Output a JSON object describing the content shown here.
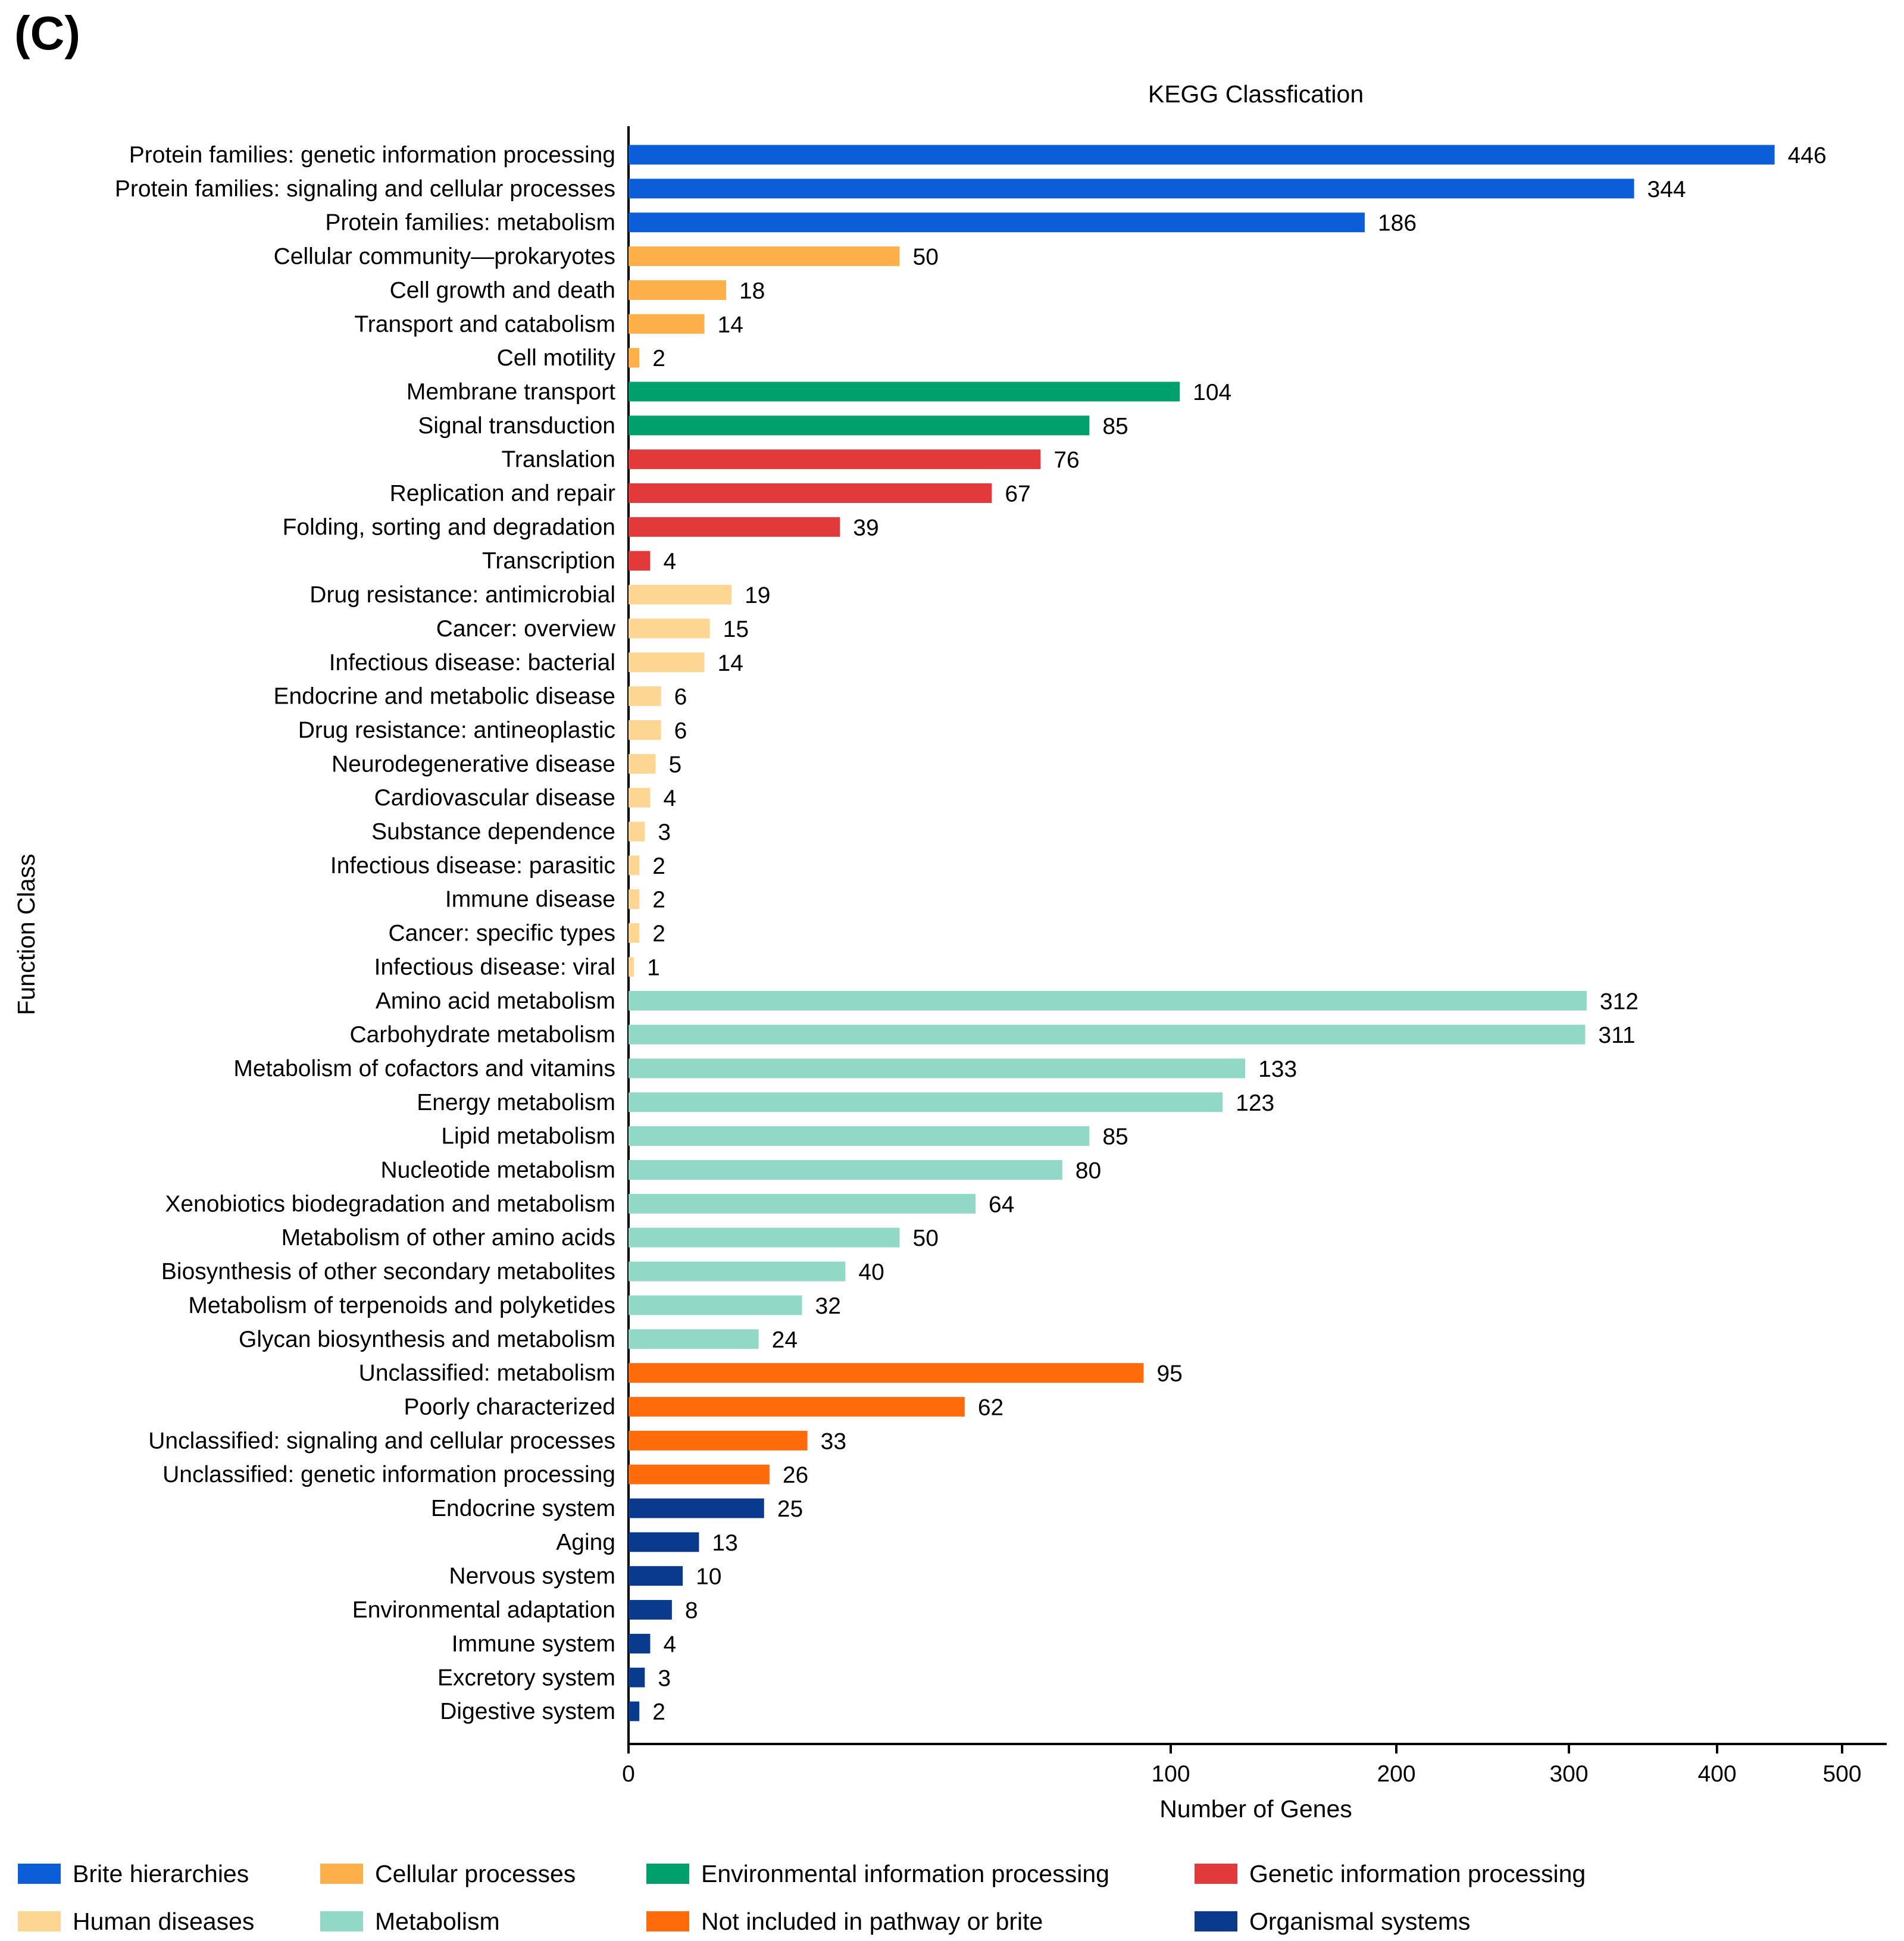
{
  "panel_label": "(C)",
  "chart_data": {
    "type": "bar",
    "orientation": "horizontal",
    "title": "KEGG Classfication",
    "xlabel": "Number of Genes",
    "ylabel": "Function Class",
    "xlim": [
      0,
      500
    ],
    "xticks": [
      0,
      100,
      200,
      300,
      400,
      500
    ],
    "x_scale": "broken",
    "legend_position": "bottom",
    "groups": [
      {
        "name": "Brite hierarchies",
        "color": "#0b5ed7"
      },
      {
        "name": "Cellular processes",
        "color": "#fdb04a"
      },
      {
        "name": "Environmental information processing",
        "color": "#00a06c"
      },
      {
        "name": "Genetic information processing",
        "color": "#e23a3a"
      },
      {
        "name": "Human diseases",
        "color": "#fed693"
      },
      {
        "name": "Metabolism",
        "color": "#92d8c6"
      },
      {
        "name": "Not included in pathway or brite",
        "color": "#ff6a0a"
      },
      {
        "name": "Organismal systems",
        "color": "#0a3a8c"
      }
    ],
    "bars": [
      {
        "label": "Protein families: genetic information processing",
        "value": 446,
        "group": 0
      },
      {
        "label": "Protein families: signaling and cellular processes",
        "value": 344,
        "group": 0
      },
      {
        "label": "Protein families: metabolism",
        "value": 186,
        "group": 0
      },
      {
        "label": "Cellular community—prokaryotes",
        "value": 50,
        "group": 1
      },
      {
        "label": "Cell growth and death",
        "value": 18,
        "group": 1
      },
      {
        "label": "Transport and catabolism",
        "value": 14,
        "group": 1
      },
      {
        "label": "Cell motility",
        "value": 2,
        "group": 1
      },
      {
        "label": "Membrane transport",
        "value": 104,
        "group": 2
      },
      {
        "label": "Signal transduction",
        "value": 85,
        "group": 2
      },
      {
        "label": "Translation",
        "value": 76,
        "group": 3
      },
      {
        "label": "Replication and repair",
        "value": 67,
        "group": 3
      },
      {
        "label": "Folding, sorting and degradation",
        "value": 39,
        "group": 3
      },
      {
        "label": "Transcription",
        "value": 4,
        "group": 3
      },
      {
        "label": "Drug resistance: antimicrobial",
        "value": 19,
        "group": 4
      },
      {
        "label": "Cancer: overview",
        "value": 15,
        "group": 4
      },
      {
        "label": "Infectious disease: bacterial",
        "value": 14,
        "group": 4
      },
      {
        "label": "Endocrine and metabolic disease",
        "value": 6,
        "group": 4
      },
      {
        "label": "Drug resistance: antineoplastic",
        "value": 6,
        "group": 4
      },
      {
        "label": "Neurodegenerative disease",
        "value": 5,
        "group": 4
      },
      {
        "label": "Cardiovascular disease",
        "value": 4,
        "group": 4
      },
      {
        "label": "Substance dependence",
        "value": 3,
        "group": 4
      },
      {
        "label": "Infectious disease: parasitic",
        "value": 2,
        "group": 4
      },
      {
        "label": "Immune disease",
        "value": 2,
        "group": 4
      },
      {
        "label": "Cancer: specific types",
        "value": 2,
        "group": 4
      },
      {
        "label": "Infectious disease: viral",
        "value": 1,
        "group": 4
      },
      {
        "label": "Amino acid metabolism",
        "value": 312,
        "group": 5
      },
      {
        "label": "Carbohydrate metabolism",
        "value": 311,
        "group": 5
      },
      {
        "label": "Metabolism of cofactors and vitamins",
        "value": 133,
        "group": 5
      },
      {
        "label": "Energy metabolism",
        "value": 123,
        "group": 5
      },
      {
        "label": "Lipid metabolism",
        "value": 85,
        "group": 5
      },
      {
        "label": "Nucleotide metabolism",
        "value": 80,
        "group": 5
      },
      {
        "label": "Xenobiotics biodegradation and metabolism",
        "value": 64,
        "group": 5
      },
      {
        "label": "Metabolism of other amino acids",
        "value": 50,
        "group": 5
      },
      {
        "label": "Biosynthesis of other secondary metabolites",
        "value": 40,
        "group": 5
      },
      {
        "label": "Metabolism of terpenoids and polyketides",
        "value": 32,
        "group": 5
      },
      {
        "label": "Glycan biosynthesis and metabolism",
        "value": 24,
        "group": 5
      },
      {
        "label": "Unclassified: metabolism",
        "value": 95,
        "group": 6
      },
      {
        "label": "Poorly characterized",
        "value": 62,
        "group": 6
      },
      {
        "label": "Unclassified: signaling and cellular processes",
        "value": 33,
        "group": 6
      },
      {
        "label": "Unclassified: genetic information processing",
        "value": 26,
        "group": 6
      },
      {
        "label": "Endocrine system",
        "value": 25,
        "group": 7
      },
      {
        "label": "Aging",
        "value": 13,
        "group": 7
      },
      {
        "label": "Nervous system",
        "value": 10,
        "group": 7
      },
      {
        "label": "Environmental adaptation",
        "value": 8,
        "group": 7
      },
      {
        "label": "Immune system",
        "value": 4,
        "group": 7
      },
      {
        "label": "Excretory system",
        "value": 3,
        "group": 7
      },
      {
        "label": "Digestive system",
        "value": 2,
        "group": 7
      }
    ]
  }
}
